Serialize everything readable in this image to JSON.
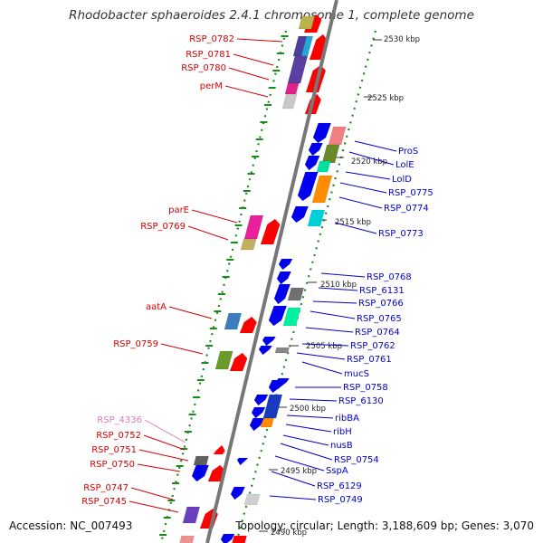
{
  "title": "Rhodobacter sphaeroides 2.4.1 chromosome 1, complete genome",
  "footer": {
    "accession": "Accession: NC_007493",
    "topology": "Topology: circular; Length: 3,188,609 bp; Genes: 3,070"
  },
  "colors": {
    "forward_label": "#d40000",
    "reverse_label": "#0000c8",
    "faded_label": "#e07ab8",
    "backbone": "#888888",
    "tick": "#1a8a1a",
    "forward_gene": "#ff0000",
    "reverse_gene": "#0000ee"
  },
  "kbp_ticks": [
    "2530 kbp",
    "2525 kbp",
    "2520 kbp",
    "2515 kbp",
    "2510 kbp",
    "2505 kbp",
    "2500 kbp",
    "2495 kbp",
    "2490 kbp"
  ],
  "left_labels": [
    "RSP_0782",
    "RSP_0781",
    "RSP_0780",
    "perM",
    "parE",
    "RSP_0769",
    "aatA",
    "RSP_0759",
    "RSP_4336",
    "RSP_0752",
    "RSP_0751",
    "RSP_0750",
    "RSP_0747",
    "RSP_0745"
  ],
  "right_labels": [
    "ProS",
    "LolE",
    "LolD",
    "RSP_0775",
    "RSP_0774",
    "RSP_0773",
    "RSP_0768",
    "RSP_6131",
    "RSP_0766",
    "RSP_0765",
    "RSP_0764",
    "RSP_0762",
    "RSP_0761",
    "mucS",
    "RSP_0758",
    "RSP_6130",
    "ribBA",
    "ribH",
    "nusB",
    "RSP_0754",
    "SspA",
    "RSP_6129",
    "RSP_0749"
  ]
}
